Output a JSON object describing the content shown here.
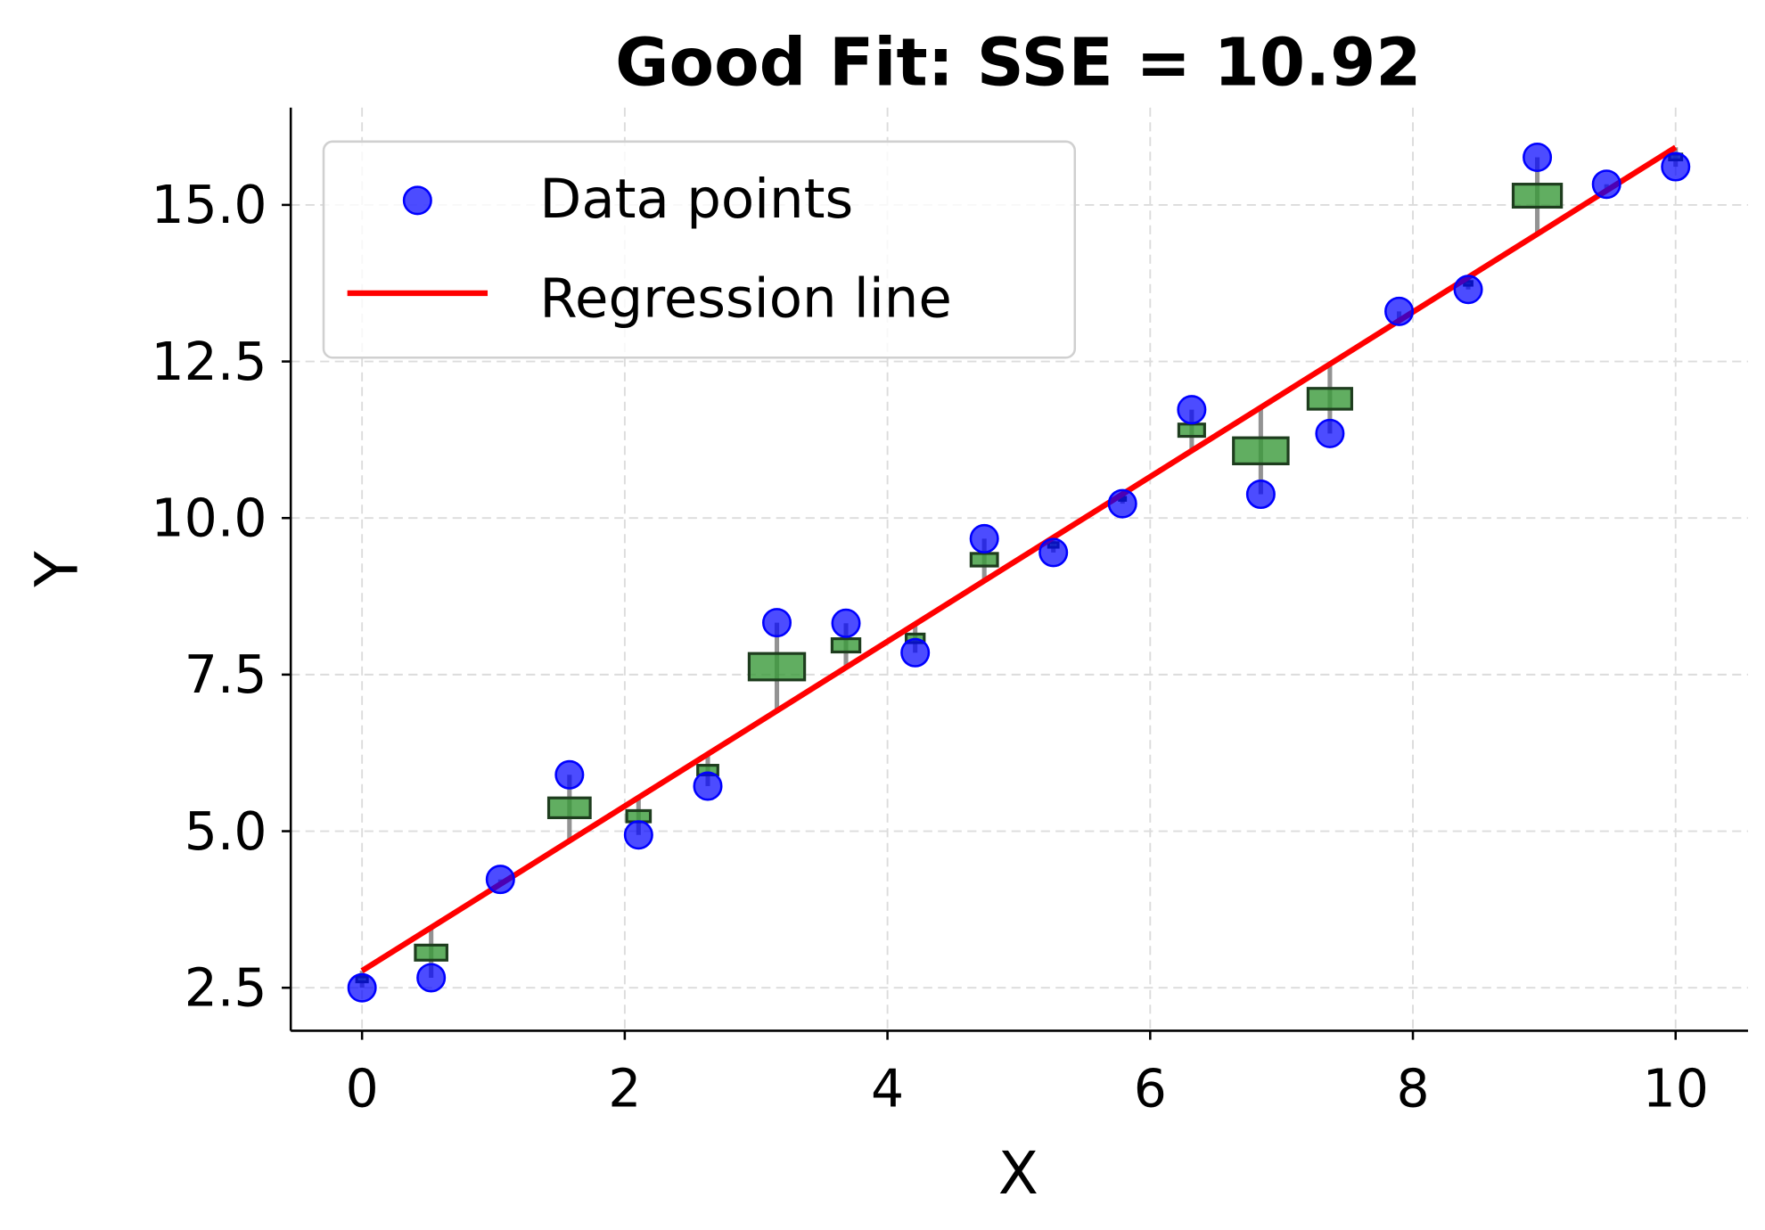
{
  "chart_data": {
    "type": "scatter",
    "title": "Good Fit: SSE = 10.92",
    "xlabel": "X",
    "ylabel": "Y",
    "xlim": [
      -0.55,
      10.55
    ],
    "ylim": [
      1.85,
      16.55
    ],
    "xticks": [
      "0",
      "2",
      "4",
      "6",
      "8",
      "10"
    ],
    "yticks": [
      "2.5",
      "5.0",
      "7.5",
      "10.0",
      "12.5",
      "15.0"
    ],
    "grid": true,
    "legend": {
      "placement": "top-left",
      "entries": [
        "Data points",
        "Regression line"
      ]
    },
    "series": [
      {
        "name": "Data points",
        "kind": "scatter",
        "color": "#0000ff",
        "x": [
          0,
          0.526,
          1.053,
          1.579,
          2.105,
          2.632,
          3.158,
          3.684,
          4.211,
          4.737,
          5.263,
          5.789,
          6.316,
          6.842,
          7.368,
          7.895,
          8.421,
          8.947,
          9.474,
          10
        ],
        "y": [
          2.5,
          2.66,
          4.23,
          5.9,
          4.94,
          5.72,
          8.33,
          8.32,
          7.85,
          9.67,
          9.45,
          10.23,
          11.73,
          10.38,
          11.35,
          13.3,
          13.65,
          15.76,
          15.33,
          15.61
        ]
      },
      {
        "name": "Regression line",
        "kind": "line",
        "color": "#ff0000",
        "slope": 1.315,
        "intercept": 2.77
      }
    ],
    "residual_color": "#808080",
    "square_color": "#3a9a3a",
    "square_edge_color": "#1e3d1e"
  }
}
